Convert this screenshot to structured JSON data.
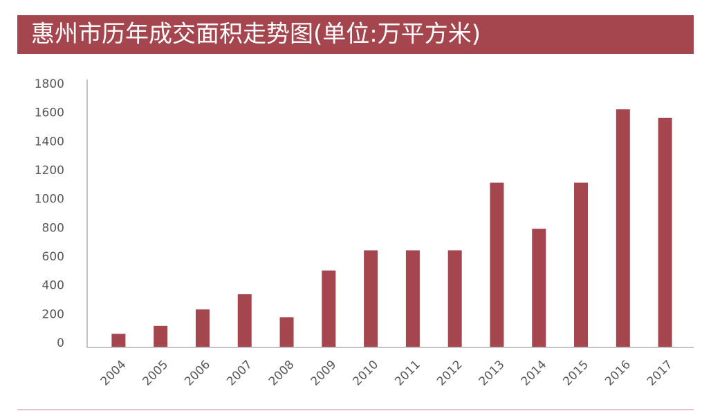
{
  "chart_data": {
    "type": "bar",
    "title": "惠州市历年成交面积走势图(单位:万平方米)",
    "categories": [
      "2004",
      "2005",
      "2006",
      "2007",
      "2008",
      "2009",
      "2010",
      "2011",
      "2012",
      "2013",
      "2014",
      "2015",
      "2016",
      "2017"
    ],
    "values": [
      90,
      145,
      260,
      365,
      205,
      530,
      670,
      670,
      670,
      1140,
      820,
      1140,
      1650,
      1590
    ],
    "color": "#a5464f",
    "ylim": [
      0,
      1800
    ],
    "yticks": [
      0,
      200,
      400,
      600,
      800,
      1000,
      1200,
      1400,
      1600,
      1800
    ],
    "grid": false
  }
}
